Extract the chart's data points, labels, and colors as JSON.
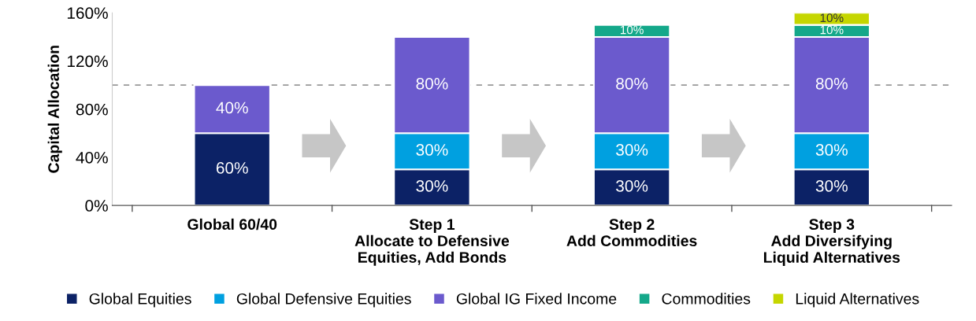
{
  "chart_data": {
    "type": "bar",
    "stacked": true,
    "ylabel": "Capital Allocation",
    "categories": [
      "Global 60/40",
      "Step 1\nAllocate to Defensive\nEquities, Add Bonds",
      "Step 2\nAdd Commodities",
      "Step 3\nAdd Diversifying\nLiquid Alternatives"
    ],
    "series": [
      {
        "name": "Global Equities",
        "color": "#0c2266",
        "values": [
          60,
          30,
          30,
          30
        ],
        "value_labels": [
          "60%",
          "30%",
          "30%",
          "30%"
        ]
      },
      {
        "name": "Global Defensive Equities",
        "color": "#00a0e0",
        "values": [
          null,
          30,
          30,
          30
        ],
        "value_labels": [
          null,
          "30%",
          "30%",
          "30%"
        ]
      },
      {
        "name": "Global IG Fixed Income",
        "color": "#6b5acd",
        "values": [
          40,
          80,
          80,
          80
        ],
        "value_labels": [
          "40%",
          "80%",
          "80%",
          "80%"
        ]
      },
      {
        "name": "Commodities",
        "color": "#14a88a",
        "values": [
          null,
          null,
          10,
          10
        ],
        "value_labels": [
          null,
          null,
          "10%",
          "10%"
        ]
      },
      {
        "name": "Liquid Alternatives",
        "color": "#c5d600",
        "values": [
          null,
          null,
          null,
          10
        ],
        "value_labels": [
          null,
          null,
          null,
          "10%"
        ]
      }
    ],
    "ylim": [
      0,
      160
    ],
    "yticks": [
      {
        "value": 0,
        "label": "0%"
      },
      {
        "value": 40,
        "label": "40%"
      },
      {
        "value": 80,
        "label": "80%"
      },
      {
        "value": 120,
        "label": "120%"
      },
      {
        "value": 160,
        "label": "160%"
      }
    ],
    "ref_lines": [
      {
        "axis": "y",
        "value": 100,
        "label": null,
        "color": "#999999",
        "line_style": "dashed"
      }
    ],
    "legend": "bottom",
    "grid": false
  }
}
